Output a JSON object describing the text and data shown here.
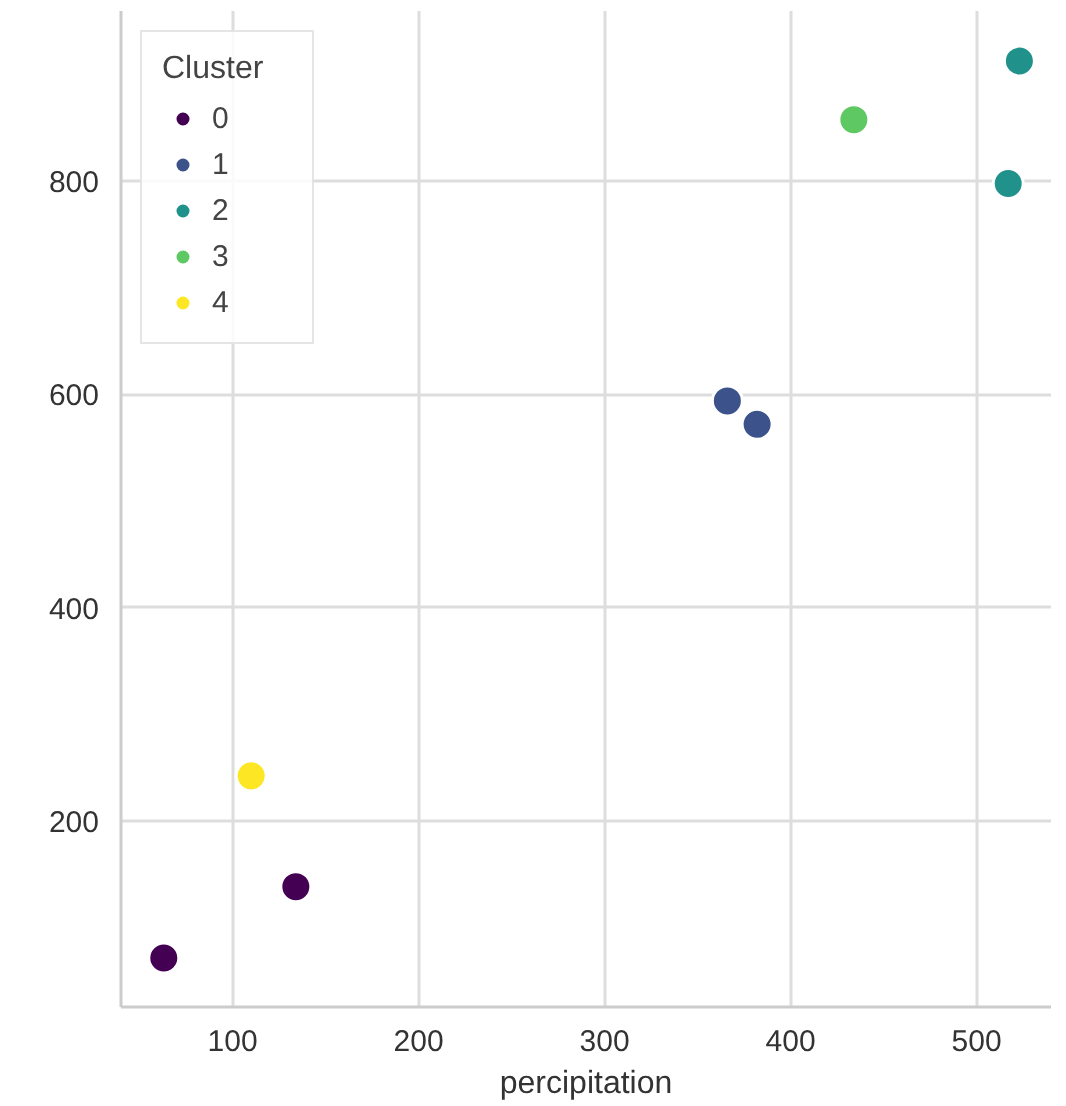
{
  "chart_data": {
    "type": "scatter",
    "xlabel": "percipitation",
    "legend_title": "Cluster",
    "legend": "top left",
    "grid": true,
    "marker": "circle",
    "xlim": [
      40,
      540
    ],
    "ylim": [
      25,
      960
    ],
    "xticks": [
      100,
      200,
      300,
      400,
      500
    ],
    "yticks": [
      200,
      400,
      600,
      800
    ],
    "series": [
      {
        "name": "0",
        "color": "#440154",
        "x": [
          63,
          134
        ],
        "values": [
          71,
          138
        ]
      },
      {
        "name": "1",
        "color": "#3b528b",
        "x": [
          366,
          382
        ],
        "values": [
          594,
          572
        ]
      },
      {
        "name": "2",
        "color": "#21918c",
        "x": [
          517,
          523
        ],
        "values": [
          798,
          913
        ]
      },
      {
        "name": "3",
        "color": "#5ec962",
        "x": [
          434
        ],
        "values": [
          858
        ]
      },
      {
        "name": "4",
        "color": "#fde725",
        "x": [
          110
        ],
        "values": [
          242
        ]
      }
    ]
  }
}
